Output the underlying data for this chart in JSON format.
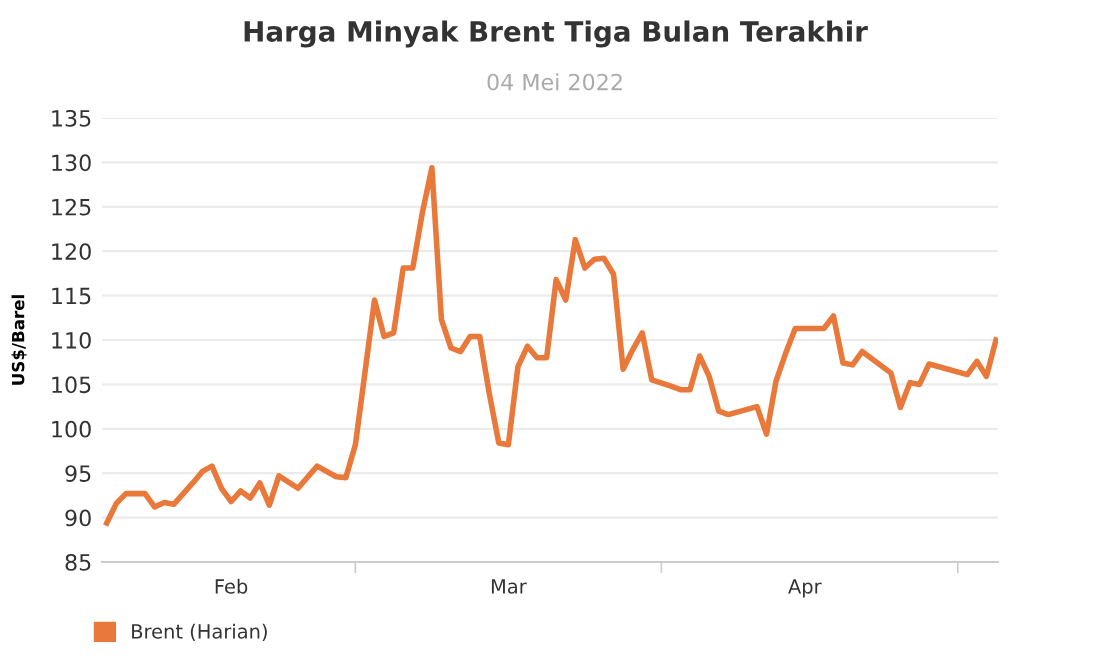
{
  "chart_data": {
    "type": "line",
    "title": "Harga Minyak Brent Tiga Bulan Terakhir",
    "subtitle": "04 Mei 2022",
    "ylabel": "US$/Barel",
    "x": [
      "2022-02-01",
      "2022-02-02",
      "2022-02-03",
      "2022-02-05",
      "2022-02-06",
      "2022-02-07",
      "2022-02-08",
      "2022-02-10",
      "2022-02-11",
      "2022-02-12",
      "2022-02-13",
      "2022-02-14",
      "2022-02-15",
      "2022-02-16",
      "2022-02-17",
      "2022-02-18",
      "2022-02-19",
      "2022-02-21",
      "2022-02-23",
      "2022-02-25",
      "2022-02-26",
      "2022-02-27",
      "2022-03-01",
      "2022-03-02",
      "2022-03-03",
      "2022-03-04",
      "2022-03-05",
      "2022-03-06",
      "2022-03-07",
      "2022-03-08",
      "2022-03-09",
      "2022-03-10",
      "2022-03-11",
      "2022-03-12",
      "2022-03-13",
      "2022-03-14",
      "2022-03-15",
      "2022-03-16",
      "2022-03-17",
      "2022-03-18",
      "2022-03-19",
      "2022-03-20",
      "2022-03-21",
      "2022-03-22",
      "2022-03-23",
      "2022-03-24",
      "2022-03-25",
      "2022-03-26",
      "2022-03-27",
      "2022-03-28",
      "2022-03-29",
      "2022-03-30",
      "2022-04-01",
      "2022-04-02",
      "2022-04-03",
      "2022-04-04",
      "2022-04-05",
      "2022-04-06",
      "2022-04-07",
      "2022-04-10",
      "2022-04-11",
      "2022-04-12",
      "2022-04-13",
      "2022-04-14",
      "2022-04-17",
      "2022-04-18",
      "2022-04-19",
      "2022-04-20",
      "2022-04-21",
      "2022-04-24",
      "2022-04-25",
      "2022-04-26",
      "2022-04-27",
      "2022-04-28",
      "2022-05-02",
      "2022-05-03",
      "2022-05-04",
      "2022-05-05"
    ],
    "series": [
      {
        "name": "Brent (Harian)",
        "color": "#e8793a",
        "values": [
          89.4,
          91.6,
          92.7,
          92.7,
          91.2,
          91.7,
          91.5,
          93.9,
          95.2,
          95.8,
          93.3,
          91.8,
          93.0,
          92.2,
          93.9,
          91.4,
          94.7,
          93.3,
          95.8,
          94.6,
          94.5,
          98.2,
          114.5,
          110.4,
          110.8,
          118.1,
          118.1,
          124.3,
          129.4,
          112.3,
          109.1,
          108.7,
          110.4,
          110.4,
          104.0,
          98.4,
          98.2,
          107.0,
          109.3,
          108.0,
          108.0,
          116.8,
          114.5,
          121.3,
          118.1,
          119.1,
          119.2,
          117.4,
          106.7,
          108.9,
          110.8,
          105.5,
          104.8,
          104.4,
          104.4,
          108.2,
          105.9,
          102.0,
          101.6,
          102.5,
          99.4,
          105.4,
          108.5,
          111.3,
          111.3,
          112.7,
          107.4,
          107.2,
          108.7,
          106.3,
          102.4,
          105.2,
          105.0,
          107.3,
          106.1,
          107.6,
          105.9,
          110.0
        ]
      }
    ],
    "xlim": [
      "2022-01-31T12:00",
      "2022-05-05T05:00"
    ],
    "xticks": [
      {
        "value": "2022-02-14",
        "label": "Feb"
      },
      {
        "value": "2022-02-27",
        "label": null
      },
      {
        "value": "2022-03-15",
        "label": "Mar"
      },
      {
        "value": "2022-03-31",
        "label": null
      },
      {
        "value": "2022-04-15",
        "label": "Apr"
      },
      {
        "value": "2022-05-01",
        "label": null
      }
    ],
    "ylim": [
      85,
      135
    ],
    "yticks": [
      85,
      90,
      95,
      100,
      105,
      110,
      115,
      120,
      125,
      130,
      135
    ],
    "grid": "y",
    "legend": "bottom left",
    "marker": "none",
    "line_style": "solid"
  }
}
